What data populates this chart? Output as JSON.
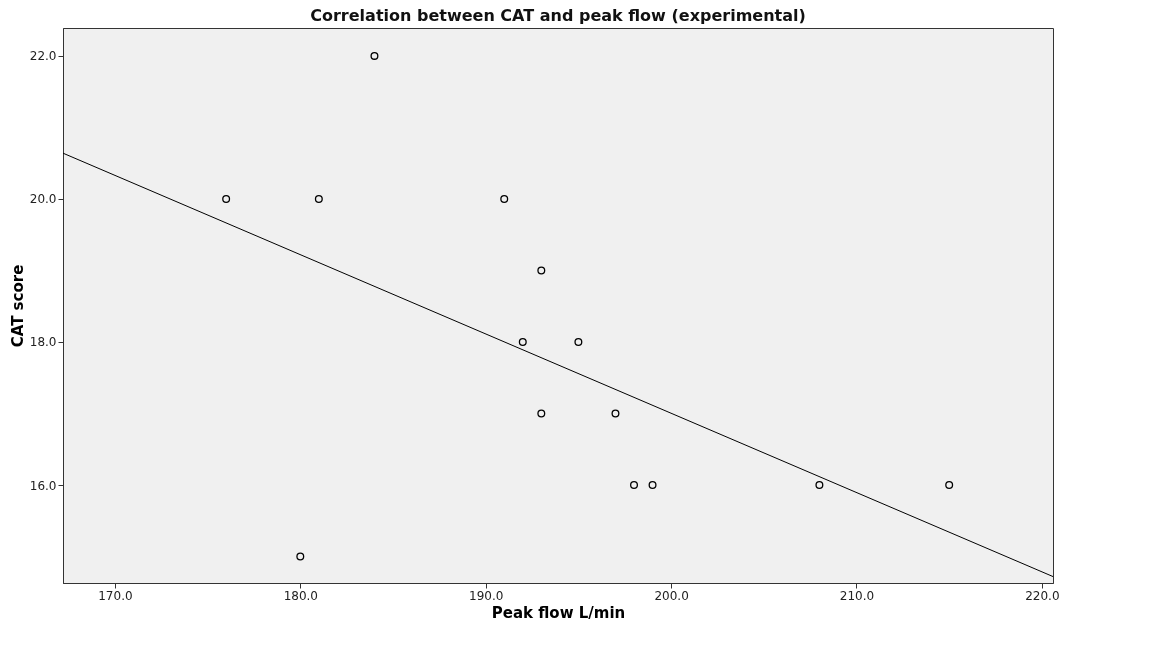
{
  "chart_data": {
    "type": "scatter",
    "title": "Correlation between CAT and peak flow (experimental)",
    "xlabel": "Peak flow L/min",
    "ylabel": "CAT score",
    "xlim": [
      167.2,
      220.6
    ],
    "xticks": [
      {
        "value": 170,
        "label": "170.0"
      },
      {
        "value": 180,
        "label": "180.0"
      },
      {
        "value": 190,
        "label": "190.0"
      },
      {
        "value": 200,
        "label": "200.0"
      },
      {
        "value": 210,
        "label": "210.0"
      },
      {
        "value": 220,
        "label": "220.0"
      }
    ],
    "ylim": [
      14.63,
      22.39
    ],
    "yticks": [
      {
        "value": 16,
        "label": "16.0"
      },
      {
        "value": 18,
        "label": "18.0"
      },
      {
        "value": 20,
        "label": "20.0"
      },
      {
        "value": 22,
        "label": "22.0"
      }
    ],
    "grid": false,
    "series": [
      {
        "marker": "circle",
        "color": "#000000",
        "x": [
          176,
          181,
          184,
          191,
          193,
          192,
          195,
          193,
          197,
          198,
          199,
          208,
          215,
          180
        ],
        "values": [
          20,
          20,
          22,
          20,
          19,
          18,
          18,
          17,
          17,
          16,
          16,
          16,
          16,
          15
        ]
      },
      {
        "type": "line",
        "marker": "none",
        "line_style": "solid",
        "color": "#000000",
        "x": [
          167.2,
          220.6
        ],
        "values": [
          20.64,
          14.72
        ]
      }
    ]
  }
}
